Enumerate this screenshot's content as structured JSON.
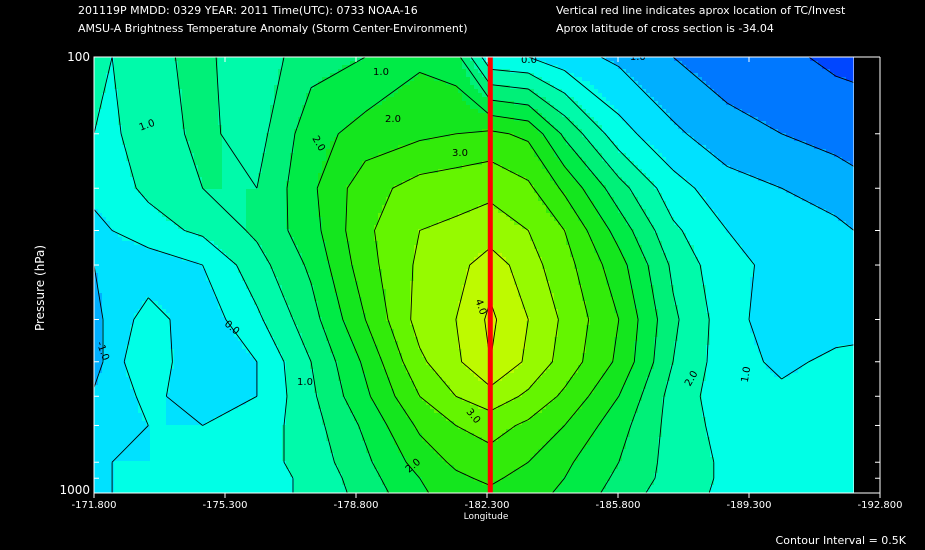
{
  "header": {
    "line1_left": "201119P  MMDD: 0329 YEAR: 2011 Time(UTC): 0733 NOAA-16",
    "line2_left": "AMSU-A Brightness Temperature Anomaly (Storm Center-Environment)",
    "line1_right": "Vertical red line indicates aprox location of TC/Invest",
    "line2_right": "Aprox latitude of cross section is -34.04"
  },
  "footer": {
    "contour_interval": "Contour Interval = 0.5K"
  },
  "colors": {
    "background": "#000000",
    "storm_line": "#ff0000",
    "contour_line": "#000000",
    "frame": "#ffffff"
  },
  "chart_data": {
    "type": "heatmap",
    "title": "AMSU-A Brightness Temperature Anomaly (Storm Center-Environment)",
    "xlabel": "Longitude",
    "ylabel": "Pressure (hPa)",
    "x_ticks": [
      -171.8,
      -175.3,
      -178.8,
      -182.3,
      -185.8,
      -189.3,
      -192.8
    ],
    "x_tick_labels": [
      "-171.800",
      "-175.300",
      "-178.800",
      "-182.300",
      "-185.800",
      "-189.300",
      "-192.800"
    ],
    "xlim": [
      -171.8,
      -192.8
    ],
    "ylim": [
      1000,
      100
    ],
    "y_scale": "log",
    "y_tick_labels": [
      "100",
      "1000"
    ],
    "y_minor_ticks": [
      150,
      200,
      250,
      300,
      400,
      500,
      600,
      700,
      850,
      925
    ],
    "storm_longitude": -182.75,
    "latitude": -34.04,
    "contour_interval": 0.5,
    "contour_labels": [
      "1.0",
      "2.0",
      "3.0",
      "4.0",
      "0.0",
      "-1.0",
      "-1.0"
    ],
    "grid_x": [
      -171.8,
      -172.3,
      -173.3,
      -174.8,
      -176.3,
      -177.8,
      -179.3,
      -180.8,
      -181.8,
      -182.75,
      -183.8,
      -184.8,
      -186.3,
      -187.8,
      -189.3,
      -190.8,
      -192.3,
      -192.8
    ],
    "grid_p": [
      100,
      150,
      200,
      250,
      300,
      400,
      500,
      600,
      700,
      850,
      925,
      1000
    ],
    "grid_values": [
      [
        0.6,
        0.5,
        0.9,
        1.1,
        0.7,
        1.3,
        1.5,
        1.9,
        1.7,
        0.1,
        0.0,
        -0.3,
        -0.6,
        -1.0,
        -1.3,
        -1.4,
        -1.6,
        -1.6
      ],
      [
        0.5,
        0.4,
        0.8,
        1.1,
        0.8,
        1.8,
        2.2,
        2.4,
        2.5,
        2.6,
        2.4,
        1.4,
        0.2,
        -0.4,
        -0.8,
        -1.0,
        -1.2,
        -1.3
      ],
      [
        0.3,
        0.3,
        0.6,
        1.0,
        1.0,
        1.9,
        2.8,
        3.2,
        3.3,
        3.4,
        3.1,
        2.4,
        1.2,
        0.2,
        -0.3,
        -0.5,
        -0.7,
        -0.8
      ],
      [
        -0.3,
        0.0,
        0.3,
        0.6,
        1.1,
        1.8,
        2.9,
        3.5,
        3.6,
        3.7,
        3.5,
        3.0,
        1.8,
        0.6,
        0.0,
        -0.2,
        -0.4,
        -0.5
      ],
      [
        -0.5,
        -0.3,
        -0.3,
        0.0,
        0.8,
        1.6,
        2.8,
        3.6,
        3.8,
        4.3,
        3.7,
        3.2,
        2.2,
        0.9,
        0.1,
        -0.1,
        -0.3,
        -0.4
      ],
      [
        -0.7,
        -0.3,
        0.2,
        -0.3,
        0.4,
        1.3,
        2.5,
        3.7,
        4.0,
        4.6,
        4.0,
        3.4,
        2.5,
        1.1,
        0.2,
        -0.3,
        -0.2,
        -0.3
      ],
      [
        -0.8,
        -0.2,
        0.4,
        -0.5,
        0.0,
        1.0,
        2.1,
        3.4,
        3.9,
        4.5,
        3.9,
        3.3,
        2.4,
        1.0,
        0.2,
        -0.1,
        0.1,
        0.2
      ],
      [
        -0.4,
        -0.2,
        0.1,
        -0.2,
        0.0,
        0.9,
        1.9,
        3.0,
        3.5,
        3.8,
        3.4,
        2.9,
        2.0,
        0.8,
        0.2,
        0.1,
        0.2,
        0.3
      ],
      [
        -0.3,
        -0.1,
        0.0,
        0.0,
        0.2,
        0.8,
        1.6,
        2.6,
        3.0,
        3.2,
        2.9,
        2.5,
        1.7,
        0.8,
        0.3,
        0.2,
        0.3,
        0.3
      ],
      [
        -0.2,
        0.0,
        0.0,
        0.1,
        0.3,
        0.7,
        1.4,
        2.2,
        2.6,
        2.8,
        2.5,
        2.1,
        1.5,
        0.8,
        0.4,
        0.3,
        0.3,
        0.3
      ],
      [
        -0.1,
        0.0,
        0.1,
        0.2,
        0.3,
        0.6,
        1.3,
        2.0,
        2.4,
        2.6,
        2.3,
        2.0,
        1.4,
        0.8,
        0.4,
        0.3,
        0.3,
        0.3
      ],
      [
        -0.1,
        0.0,
        0.1,
        0.2,
        0.3,
        0.6,
        1.2,
        1.9,
        2.3,
        2.4,
        2.2,
        1.9,
        1.3,
        0.7,
        0.4,
        0.3,
        0.3,
        0.3
      ]
    ]
  }
}
